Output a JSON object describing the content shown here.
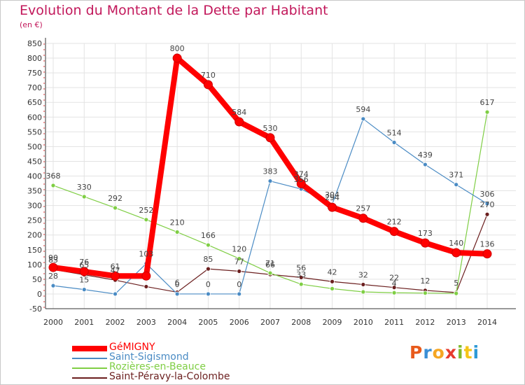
{
  "chart_data": {
    "type": "line",
    "title": "Evolution du Montant de la Dette par Habitant",
    "subtitle": "(en €)",
    "x": [
      "2000",
      "2001",
      "2002",
      "2003",
      "2004",
      "2005",
      "2006",
      "2007",
      "2008",
      "2009",
      "2010",
      "2011",
      "2012",
      "2013",
      "2014"
    ],
    "ylim": [
      -50,
      850
    ],
    "yticks": [
      -50,
      0,
      50,
      100,
      150,
      200,
      250,
      300,
      350,
      400,
      450,
      500,
      550,
      600,
      650,
      700,
      750,
      800,
      850
    ],
    "grid": true,
    "legend_position": "bottom-left",
    "series": [
      {
        "name": "GéMIGNY",
        "color": "#ff0000",
        "values": [
          90,
          76,
          61,
          61,
          800,
          710,
          584,
          530,
          374,
          294,
          257,
          212,
          173,
          140,
          136
        ],
        "labels": [
          "90",
          "76",
          "61",
          "",
          "800",
          "710",
          "584",
          "530",
          "374",
          "294",
          "257",
          "212",
          "173",
          "140",
          "136"
        ]
      },
      {
        "name": "Saint-Sigismond",
        "color": "#4a8bc4",
        "values": [
          28,
          15,
          0,
          103,
          0,
          0,
          0,
          383,
          356,
          304,
          594,
          514,
          439,
          371,
          306
        ],
        "labels": [
          "28",
          "15",
          "",
          "103",
          "0",
          "0",
          "0",
          "383",
          "356",
          "304",
          "594",
          "514",
          "439",
          "371",
          "306"
        ]
      },
      {
        "name": "Rozières-en-Beauce",
        "color": "#7fce44",
        "values": [
          368,
          330,
          292,
          252,
          210,
          166,
          120,
          71,
          33,
          18,
          7,
          4,
          3,
          2,
          617
        ],
        "labels": [
          "368",
          "330",
          "292",
          "252",
          "210",
          "166",
          "120",
          "71",
          "33",
          "",
          "",
          "4",
          "",
          "",
          "617"
        ]
      },
      {
        "name": "Saint-Péravy-la-Colombe",
        "color": "#6b1f1f",
        "values": [
          83,
          65,
          47,
          25,
          6,
          85,
          77,
          66,
          56,
          42,
          32,
          22,
          12,
          5,
          270
        ],
        "labels": [
          "83",
          "65",
          "47",
          "",
          "6",
          "85",
          "77",
          "66",
          "56",
          "42",
          "32",
          "22",
          "12",
          "5",
          "270"
        ]
      }
    ]
  },
  "logo": {
    "text": "Proxiti",
    "colors": [
      "#e85a1b",
      "#3a8fd6",
      "#f5a623",
      "#e63b2e",
      "#7fba2a",
      "#f5c518",
      "#2e9ad6"
    ]
  }
}
